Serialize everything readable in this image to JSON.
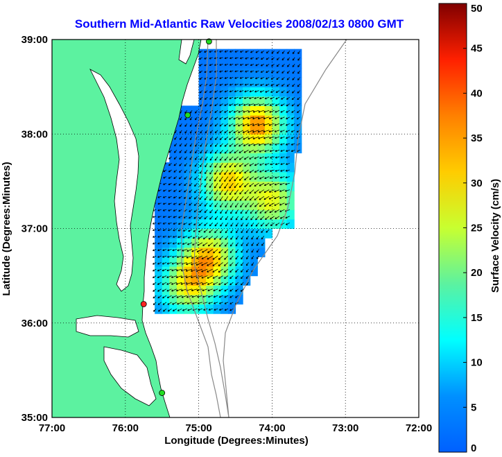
{
  "title": "Southern Mid-Atlantic Raw Velocities 2008/02/13 0800 GMT",
  "colors": {
    "title": "#0000ff",
    "land": "#5cf2a0",
    "ocean": "#ffffff",
    "coast": "#000000",
    "bathymetry": "#888888",
    "grid": "#000000",
    "station_normal": "#22dd22",
    "station_alert": "#ff2222"
  },
  "map": {
    "lon_min": -77.0,
    "lon_max": -72.0,
    "lat_min": 35.0,
    "lat_max": 39.0,
    "xlabel": "Longitude (Degrees:Minutes)",
    "ylabel": "Latitude (Degrees:Minutes)",
    "x_ticks": [
      {
        "value": -77.0,
        "label": "77:00"
      },
      {
        "value": -76.0,
        "label": "76:00"
      },
      {
        "value": -75.0,
        "label": "75:00"
      },
      {
        "value": -74.0,
        "label": "74:00"
      },
      {
        "value": -73.0,
        "label": "73:00"
      },
      {
        "value": -72.0,
        "label": "72:00"
      }
    ],
    "y_ticks": [
      {
        "value": 35.0,
        "label": "35:00"
      },
      {
        "value": 36.0,
        "label": "36:00"
      },
      {
        "value": 37.0,
        "label": "37:00"
      },
      {
        "value": 38.0,
        "label": "38:00"
      },
      {
        "value": 39.0,
        "label": "39:00"
      }
    ],
    "grid": "dotted",
    "stations": [
      {
        "lon": -74.86,
        "lat": 38.98,
        "status": "normal"
      },
      {
        "lon": -75.15,
        "lat": 38.2,
        "status": "normal"
      },
      {
        "lon": -75.75,
        "lat": 36.2,
        "status": "alert"
      },
      {
        "lon": -75.5,
        "lat": 35.26,
        "status": "normal"
      }
    ]
  },
  "colorbar": {
    "label": "Surface Velocity (cm/s)",
    "min": 0,
    "max": 50,
    "ticks": [
      0,
      5,
      10,
      15,
      20,
      25,
      30,
      35,
      40,
      45,
      50
    ],
    "colormap": "jet",
    "units": "cm/s"
  },
  "chart_data": {
    "type": "heatmap",
    "title": "Southern Mid-Atlantic Raw Velocities 2008/02/13 0800 GMT",
    "xlabel": "Longitude (Degrees:Minutes)",
    "ylabel": "Latitude (Degrees:Minutes)",
    "xlim": [
      -77.0,
      -72.0
    ],
    "ylim": [
      35.0,
      39.0
    ],
    "value_label": "Surface Velocity (cm/s)",
    "value_range": [
      0,
      50
    ],
    "field_extent": {
      "lon": [
        -75.6,
        -73.6
      ],
      "lat": [
        36.1,
        38.9
      ]
    },
    "velocity_hotspots": [
      {
        "lon": -74.2,
        "lat": 38.1,
        "speed": 37
      },
      {
        "lon": -74.6,
        "lat": 37.5,
        "speed": 33
      },
      {
        "lon": -74.85,
        "lat": 36.7,
        "speed": 33
      },
      {
        "lon": -75.15,
        "lat": 36.4,
        "speed": 30
      },
      {
        "lon": -74.0,
        "lat": 37.3,
        "speed": 30
      }
    ],
    "mean_flow_direction": "southwest"
  }
}
